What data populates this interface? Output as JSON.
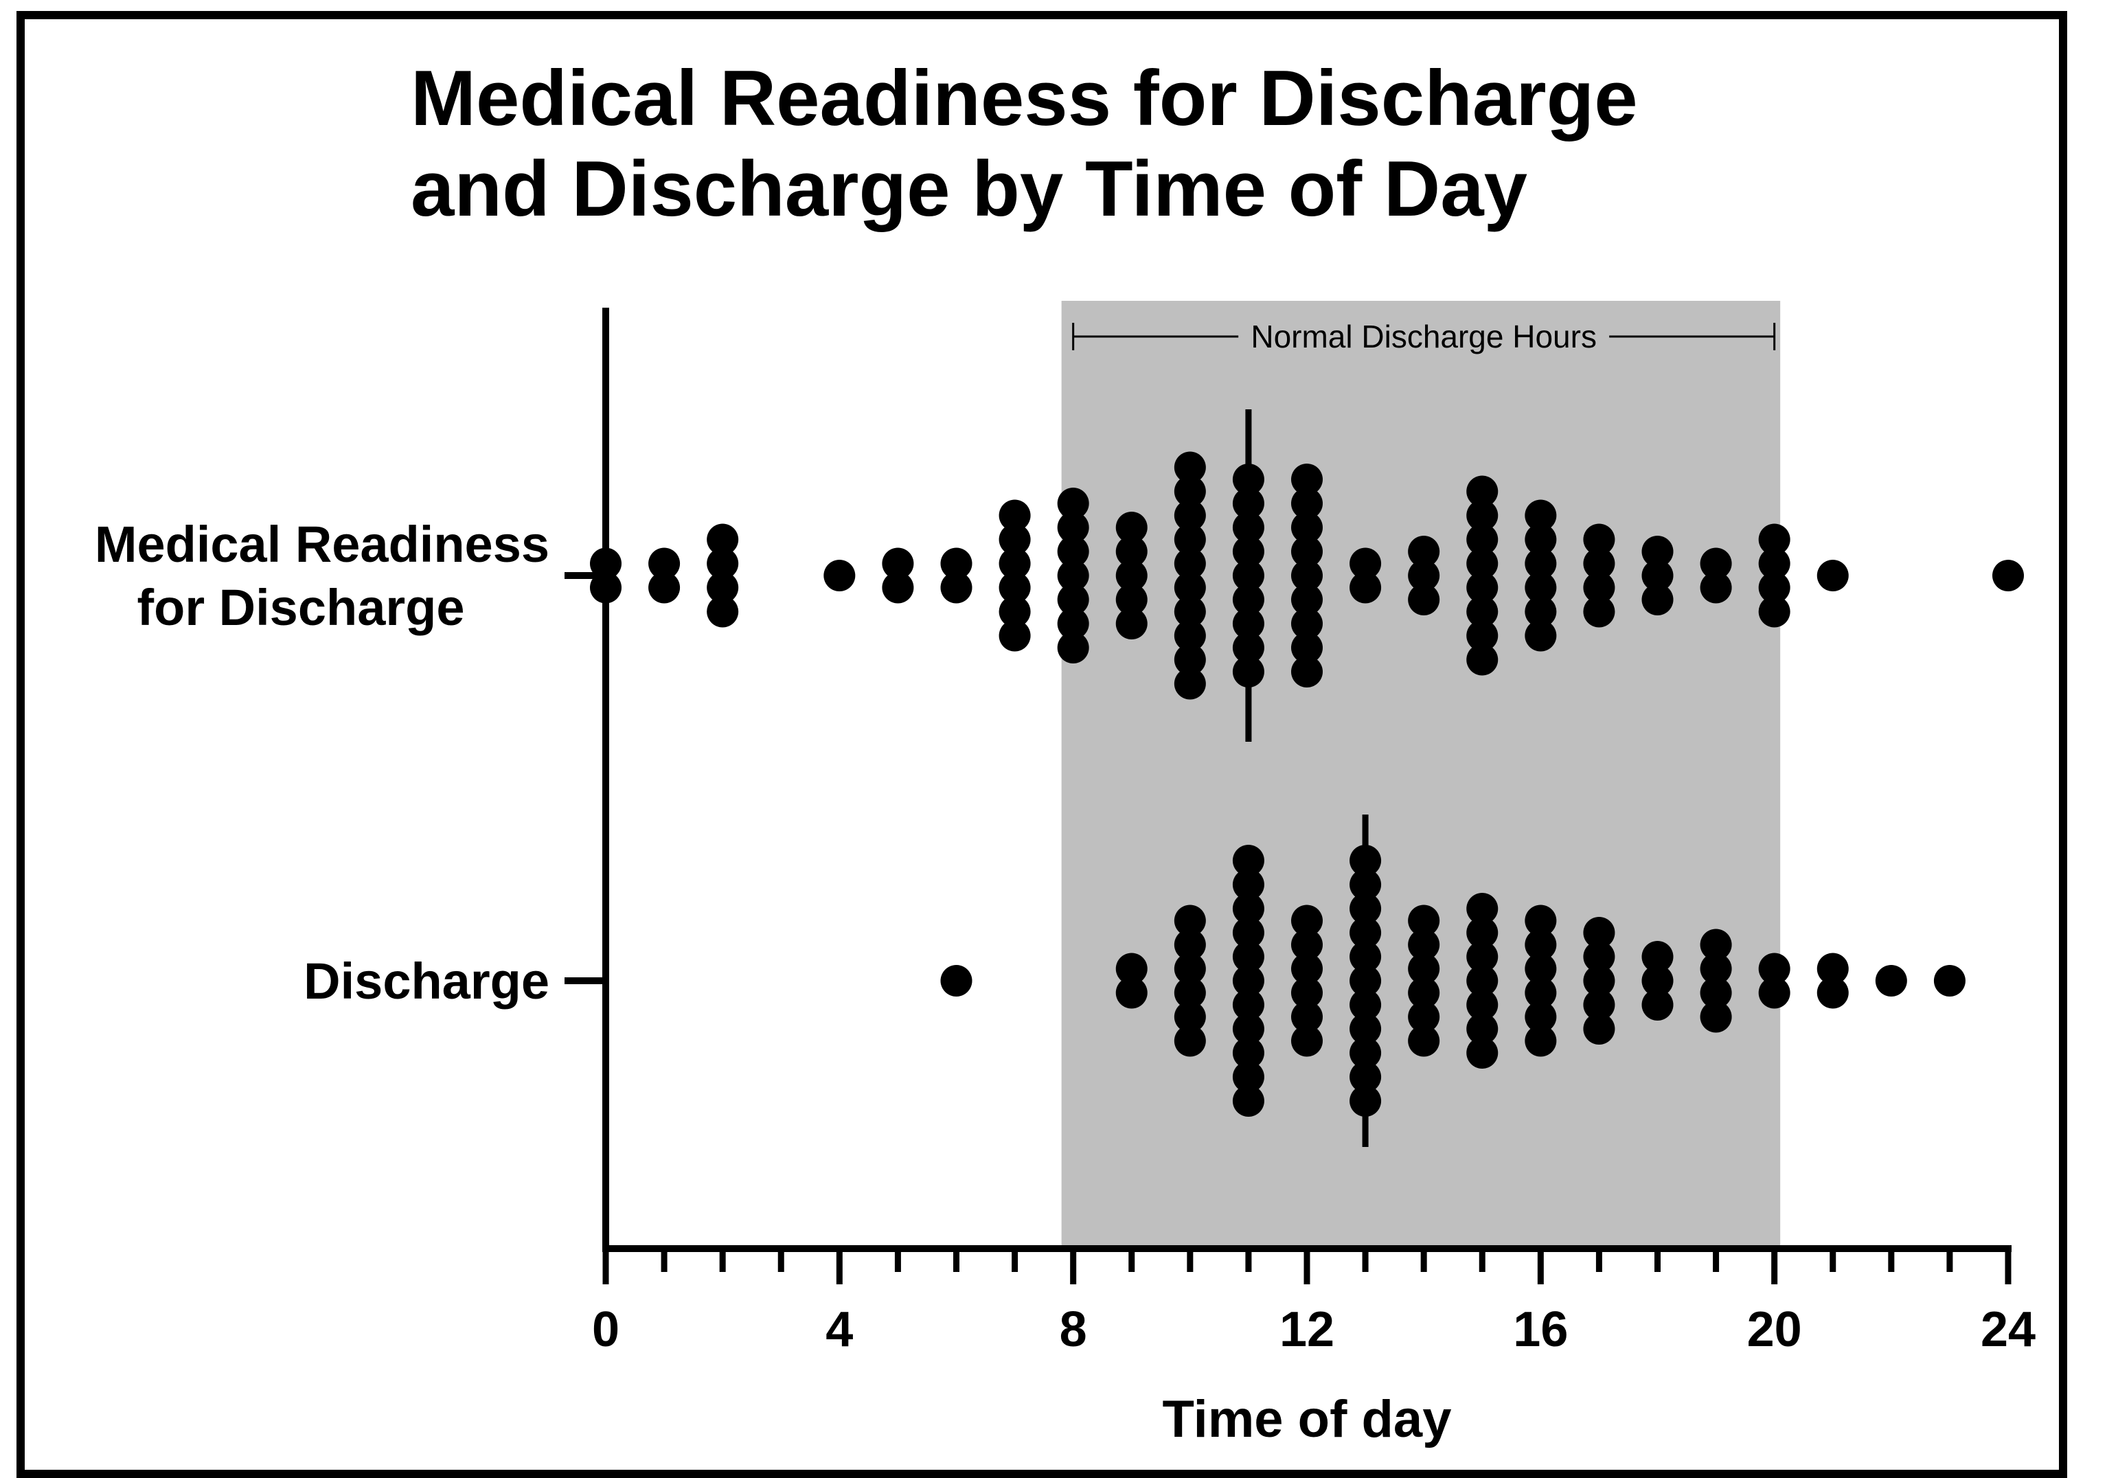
{
  "chart_data": {
    "type": "scatter",
    "title_lines": [
      "Medical Readiness for Discharge",
      "and Discharge by Time of Day"
    ],
    "xlabel": "Time of day",
    "ylabel": "",
    "xlim": [
      0,
      24
    ],
    "x_ticks": [
      0,
      4,
      8,
      12,
      16,
      20,
      24
    ],
    "grid": false,
    "legend": "none",
    "categories": [
      [
        "Medical Readiness",
        "for Discharge"
      ],
      [
        "Discharge"
      ]
    ],
    "shaded_region": {
      "x_start": 7.8,
      "x_end": 20.1,
      "label": "Normal Discharge Hours",
      "color": "#bfbfbf"
    },
    "series": [
      {
        "category": "Medical Readiness for Discharge",
        "median": 11,
        "counts_by_hour": [
          {
            "x": 0,
            "n": 2
          },
          {
            "x": 1,
            "n": 2
          },
          {
            "x": 2,
            "n": 4
          },
          {
            "x": 4,
            "n": 1
          },
          {
            "x": 5,
            "n": 2
          },
          {
            "x": 6,
            "n": 2
          },
          {
            "x": 7,
            "n": 6
          },
          {
            "x": 8,
            "n": 7
          },
          {
            "x": 9,
            "n": 5
          },
          {
            "x": 10,
            "n": 10
          },
          {
            "x": 11,
            "n": 9
          },
          {
            "x": 12,
            "n": 9
          },
          {
            "x": 13,
            "n": 2
          },
          {
            "x": 14,
            "n": 3
          },
          {
            "x": 15,
            "n": 8
          },
          {
            "x": 16,
            "n": 6
          },
          {
            "x": 17,
            "n": 4
          },
          {
            "x": 18,
            "n": 3
          },
          {
            "x": 19,
            "n": 2
          },
          {
            "x": 20,
            "n": 4
          },
          {
            "x": 21,
            "n": 1
          },
          {
            "x": 24,
            "n": 1
          }
        ]
      },
      {
        "category": "Discharge",
        "median": 13,
        "counts_by_hour": [
          {
            "x": 6,
            "n": 1
          },
          {
            "x": 9,
            "n": 2
          },
          {
            "x": 10,
            "n": 6
          },
          {
            "x": 11,
            "n": 11
          },
          {
            "x": 12,
            "n": 6
          },
          {
            "x": 13,
            "n": 11
          },
          {
            "x": 14,
            "n": 6
          },
          {
            "x": 15,
            "n": 7
          },
          {
            "x": 16,
            "n": 6
          },
          {
            "x": 17,
            "n": 5
          },
          {
            "x": 18,
            "n": 3
          },
          {
            "x": 19,
            "n": 4
          },
          {
            "x": 20,
            "n": 2
          },
          {
            "x": 21,
            "n": 2
          },
          {
            "x": 22,
            "n": 1
          },
          {
            "x": 23,
            "n": 1
          }
        ]
      }
    ]
  }
}
